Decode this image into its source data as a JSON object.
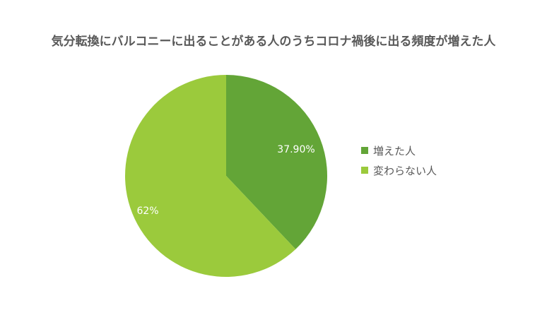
{
  "chart_data": {
    "type": "pie",
    "title": "気分転換にバルコニーに出ることがある人のうちコロナ禍後に出る頻度が増えた人",
    "categories": [
      "増えた人",
      "変わらない人"
    ],
    "values": [
      37.9,
      62
    ],
    "data_labels": [
      "37.90%",
      "62%"
    ],
    "colors": [
      "#63a537",
      "#9bca3c"
    ],
    "label_color": "#ffffff",
    "legend_position": "right",
    "start_angle_deg": 0,
    "direction": "clockwise"
  }
}
